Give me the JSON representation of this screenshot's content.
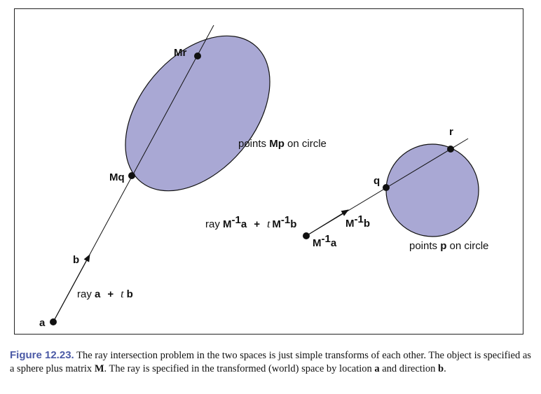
{
  "figure": {
    "fill_color": "#a9a8d4",
    "caption_label_color": "#4b5aa6",
    "world_space": {
      "ellipse_label_pre": "points ",
      "ellipse_label_bold": "Mp",
      "ellipse_label_post": " on circle",
      "label_Mr": "Mr",
      "label_Mq": "Mq",
      "label_a": "a",
      "label_b": "b",
      "ray_pre": "ray ",
      "ray_a": "a",
      "ray_plus": "+",
      "ray_t": "t",
      "ray_b": "b"
    },
    "object_space": {
      "circle_label_pre": "points ",
      "circle_label_bold": "p",
      "circle_label_post": " on circle",
      "label_r": "r",
      "label_q": "q",
      "origin_M": "M",
      "origin_exp": "-1",
      "origin_a": "a",
      "dir_M": "M",
      "dir_exp": "-1",
      "dir_b": "b",
      "ray_pre": "ray ",
      "ray_M1": "M",
      "ray_exp1": "-1",
      "ray_a": "a",
      "ray_plus": "+",
      "ray_t": "t",
      "ray_M2": "M",
      "ray_exp2": "-1",
      "ray_b": "b"
    }
  },
  "caption": {
    "label": "Figure 12.23.",
    "text1": " The ray intersection problem in the two spaces is just simple transforms of each other. The object is specified as a sphere plus matrix ",
    "bold_M": "M",
    "text2": ". The ray is specified in the transformed (world) space by location ",
    "bold_a": "a",
    "text3": " and direction ",
    "bold_b": "b",
    "text4": "."
  }
}
